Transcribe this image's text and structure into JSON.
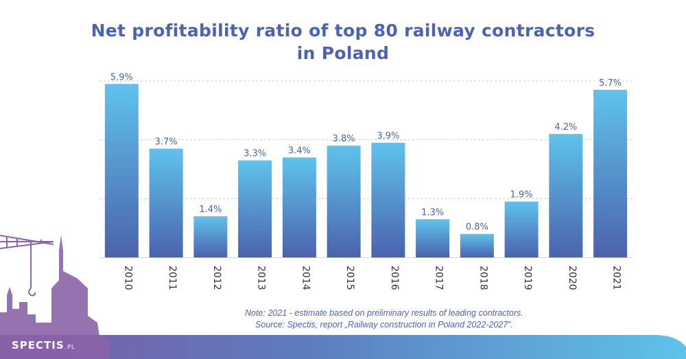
{
  "title_line1": "Net profitability ratio of top 80 railway contractors",
  "title_line2": "in Poland",
  "note_line1": "Note: 2021 - estimate based on preliminary results of leading contractors.",
  "note_line2": "Source: Spectis, report „Railway construction in Poland 2022-2027”.",
  "logo_main": "SPECTIS",
  "logo_suffix": ".PL",
  "colors": {
    "title": "#4a63b3",
    "bar_top": "#5fc3ec",
    "bar_bottom": "#4b62ad",
    "label": "#4a63b3",
    "footer_left": "#7b5aa6",
    "footer_right": "#5ec3ea"
  },
  "chart_data": {
    "type": "bar",
    "categories": [
      "2010",
      "2011",
      "2012",
      "2013",
      "2014",
      "2015",
      "2016",
      "2017",
      "2018",
      "2019",
      "2020",
      "2021"
    ],
    "values": [
      5.9,
      3.7,
      1.4,
      3.3,
      3.4,
      3.8,
      3.9,
      1.3,
      0.8,
      1.9,
      4.2,
      5.7
    ],
    "data_labels": [
      "5.9%",
      "3.7%",
      "1.4%",
      "3.3%",
      "3.4%",
      "3.8%",
      "3.9%",
      "1.3%",
      "0.8%",
      "1.9%",
      "4.2%",
      "5.7%"
    ],
    "ylim": [
      0,
      6
    ],
    "grid": true,
    "unit": "%",
    "xlabel": "",
    "ylabel": ""
  }
}
